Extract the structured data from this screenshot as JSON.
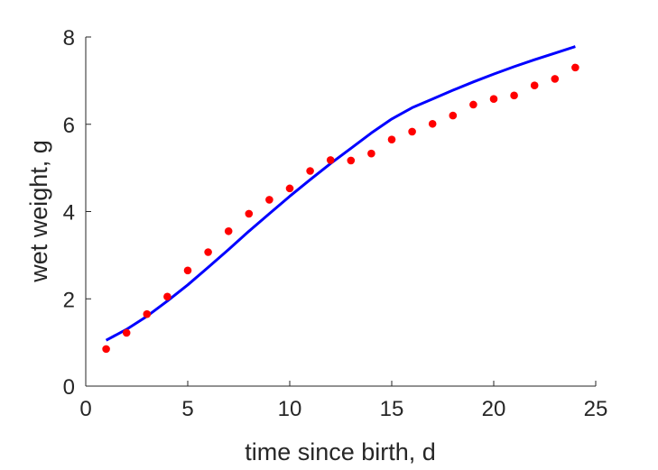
{
  "chart_data": {
    "type": "scatter",
    "xlabel": "time since birth, d",
    "ylabel": "wet weight, g",
    "xlim": [
      0,
      25
    ],
    "ylim": [
      0,
      8
    ],
    "xticks": [
      0,
      5,
      10,
      15,
      20,
      25
    ],
    "yticks": [
      0,
      2,
      4,
      6,
      8
    ],
    "grid": false,
    "legend": "none",
    "series": [
      {
        "kind": "points",
        "color": "#ff0000",
        "x": [
          1,
          2,
          3,
          4,
          5,
          6,
          7,
          8,
          9,
          10,
          11,
          12,
          13,
          14,
          15,
          16,
          17,
          18,
          19,
          20,
          21,
          22,
          23,
          24
        ],
        "y": [
          0.85,
          1.22,
          1.65,
          2.05,
          2.65,
          3.07,
          3.55,
          3.95,
          4.27,
          4.53,
          4.93,
          5.18,
          5.17,
          5.33,
          5.65,
          5.83,
          6.01,
          6.2,
          6.45,
          6.58,
          6.66,
          6.89,
          7.04,
          7.3
        ]
      },
      {
        "kind": "line",
        "color": "#0000ff",
        "x": [
          1,
          2,
          3,
          4,
          5,
          6,
          7,
          8,
          9,
          10,
          11,
          12,
          13,
          14,
          15,
          16,
          17,
          18,
          19,
          20,
          21,
          22,
          23,
          24
        ],
        "y": [
          1.05,
          1.3,
          1.6,
          1.95,
          2.32,
          2.72,
          3.13,
          3.55,
          3.95,
          4.35,
          4.73,
          5.1,
          5.45,
          5.8,
          6.12,
          6.38,
          6.58,
          6.78,
          6.97,
          7.15,
          7.32,
          7.48,
          7.63,
          7.78
        ]
      }
    ]
  }
}
